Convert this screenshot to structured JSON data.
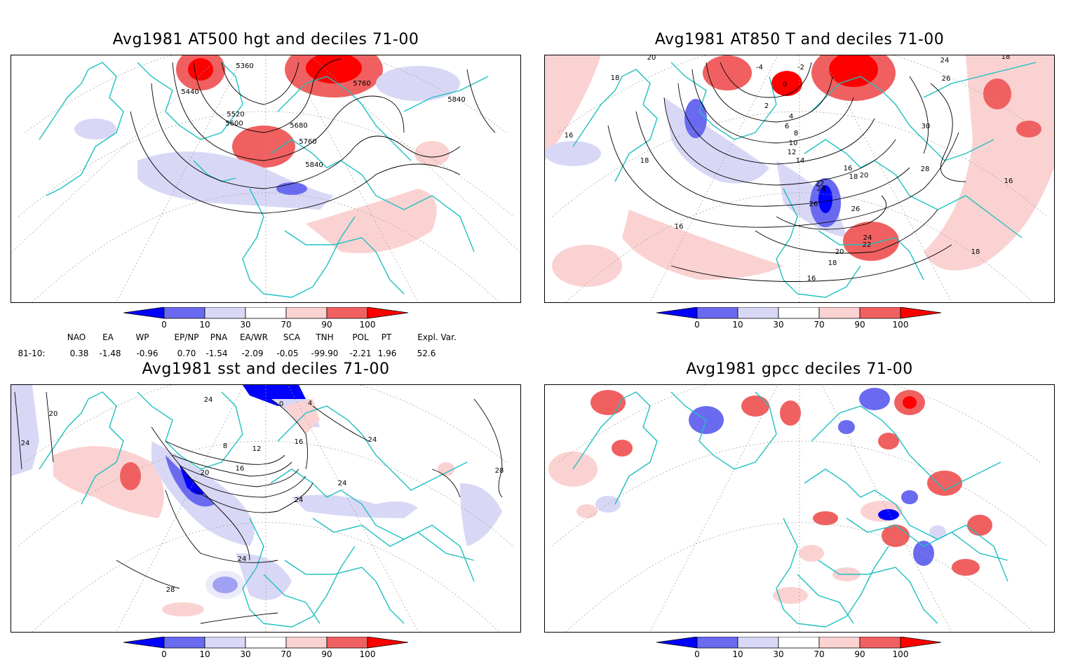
{
  "panels": [
    {
      "title": "Avg1981 AT500 hgt and deciles 71-00",
      "contour_labels": [
        "5360",
        "5440",
        "5520",
        "5600",
        "5680",
        "5760",
        "5760",
        "5840",
        "5840"
      ]
    },
    {
      "title": "Avg1981 AT850 T and deciles 71-00",
      "contour_labels": [
        "20",
        "18",
        "16",
        "18",
        "-4",
        "-2",
        "0",
        "2",
        "4",
        "6",
        "8",
        "10",
        "12",
        "14",
        "16",
        "18",
        "20",
        "22",
        "24",
        "26",
        "26",
        "28",
        "30",
        "24",
        "26",
        "16",
        "18",
        "16",
        "18",
        "22",
        "24",
        "20",
        "18",
        "16"
      ]
    },
    {
      "title": "Avg1981 sst and deciles 71-00",
      "contour_labels": [
        "20",
        "24",
        "24",
        "8",
        "12",
        "16",
        "20",
        "16",
        "24",
        "24",
        "28",
        "24",
        "28",
        "24",
        "4",
        "0"
      ]
    },
    {
      "title": "Avg1981 gpcc deciles 71-00",
      "contour_labels": []
    }
  ],
  "colorbar": {
    "labels": [
      "0",
      "10",
      "30",
      "70",
      "90",
      "100"
    ],
    "colors": [
      "#0000ff",
      "#6a6af0",
      "#d8d8f6",
      "#ffffff",
      "#fbd2d2",
      "#f06060",
      "#ff0000"
    ]
  },
  "indices": {
    "headers": [
      "NAO",
      "EA",
      "WP",
      "EP/NP",
      "PNA",
      "EA/WR",
      "SCA",
      "TNH",
      "POL",
      "PT",
      "Expl. Var."
    ],
    "row_label": "81-10:",
    "values": [
      "0.38",
      "-1.48",
      "-0.96",
      "0.70",
      "-1.54",
      "-2.09",
      "-0.05",
      "-99.90",
      "-2.21",
      "1.96",
      "52.6"
    ]
  },
  "style": {
    "coast_color": "#20c0c0",
    "contour_color": "#000000",
    "grid_color": "#9a9a9a"
  }
}
